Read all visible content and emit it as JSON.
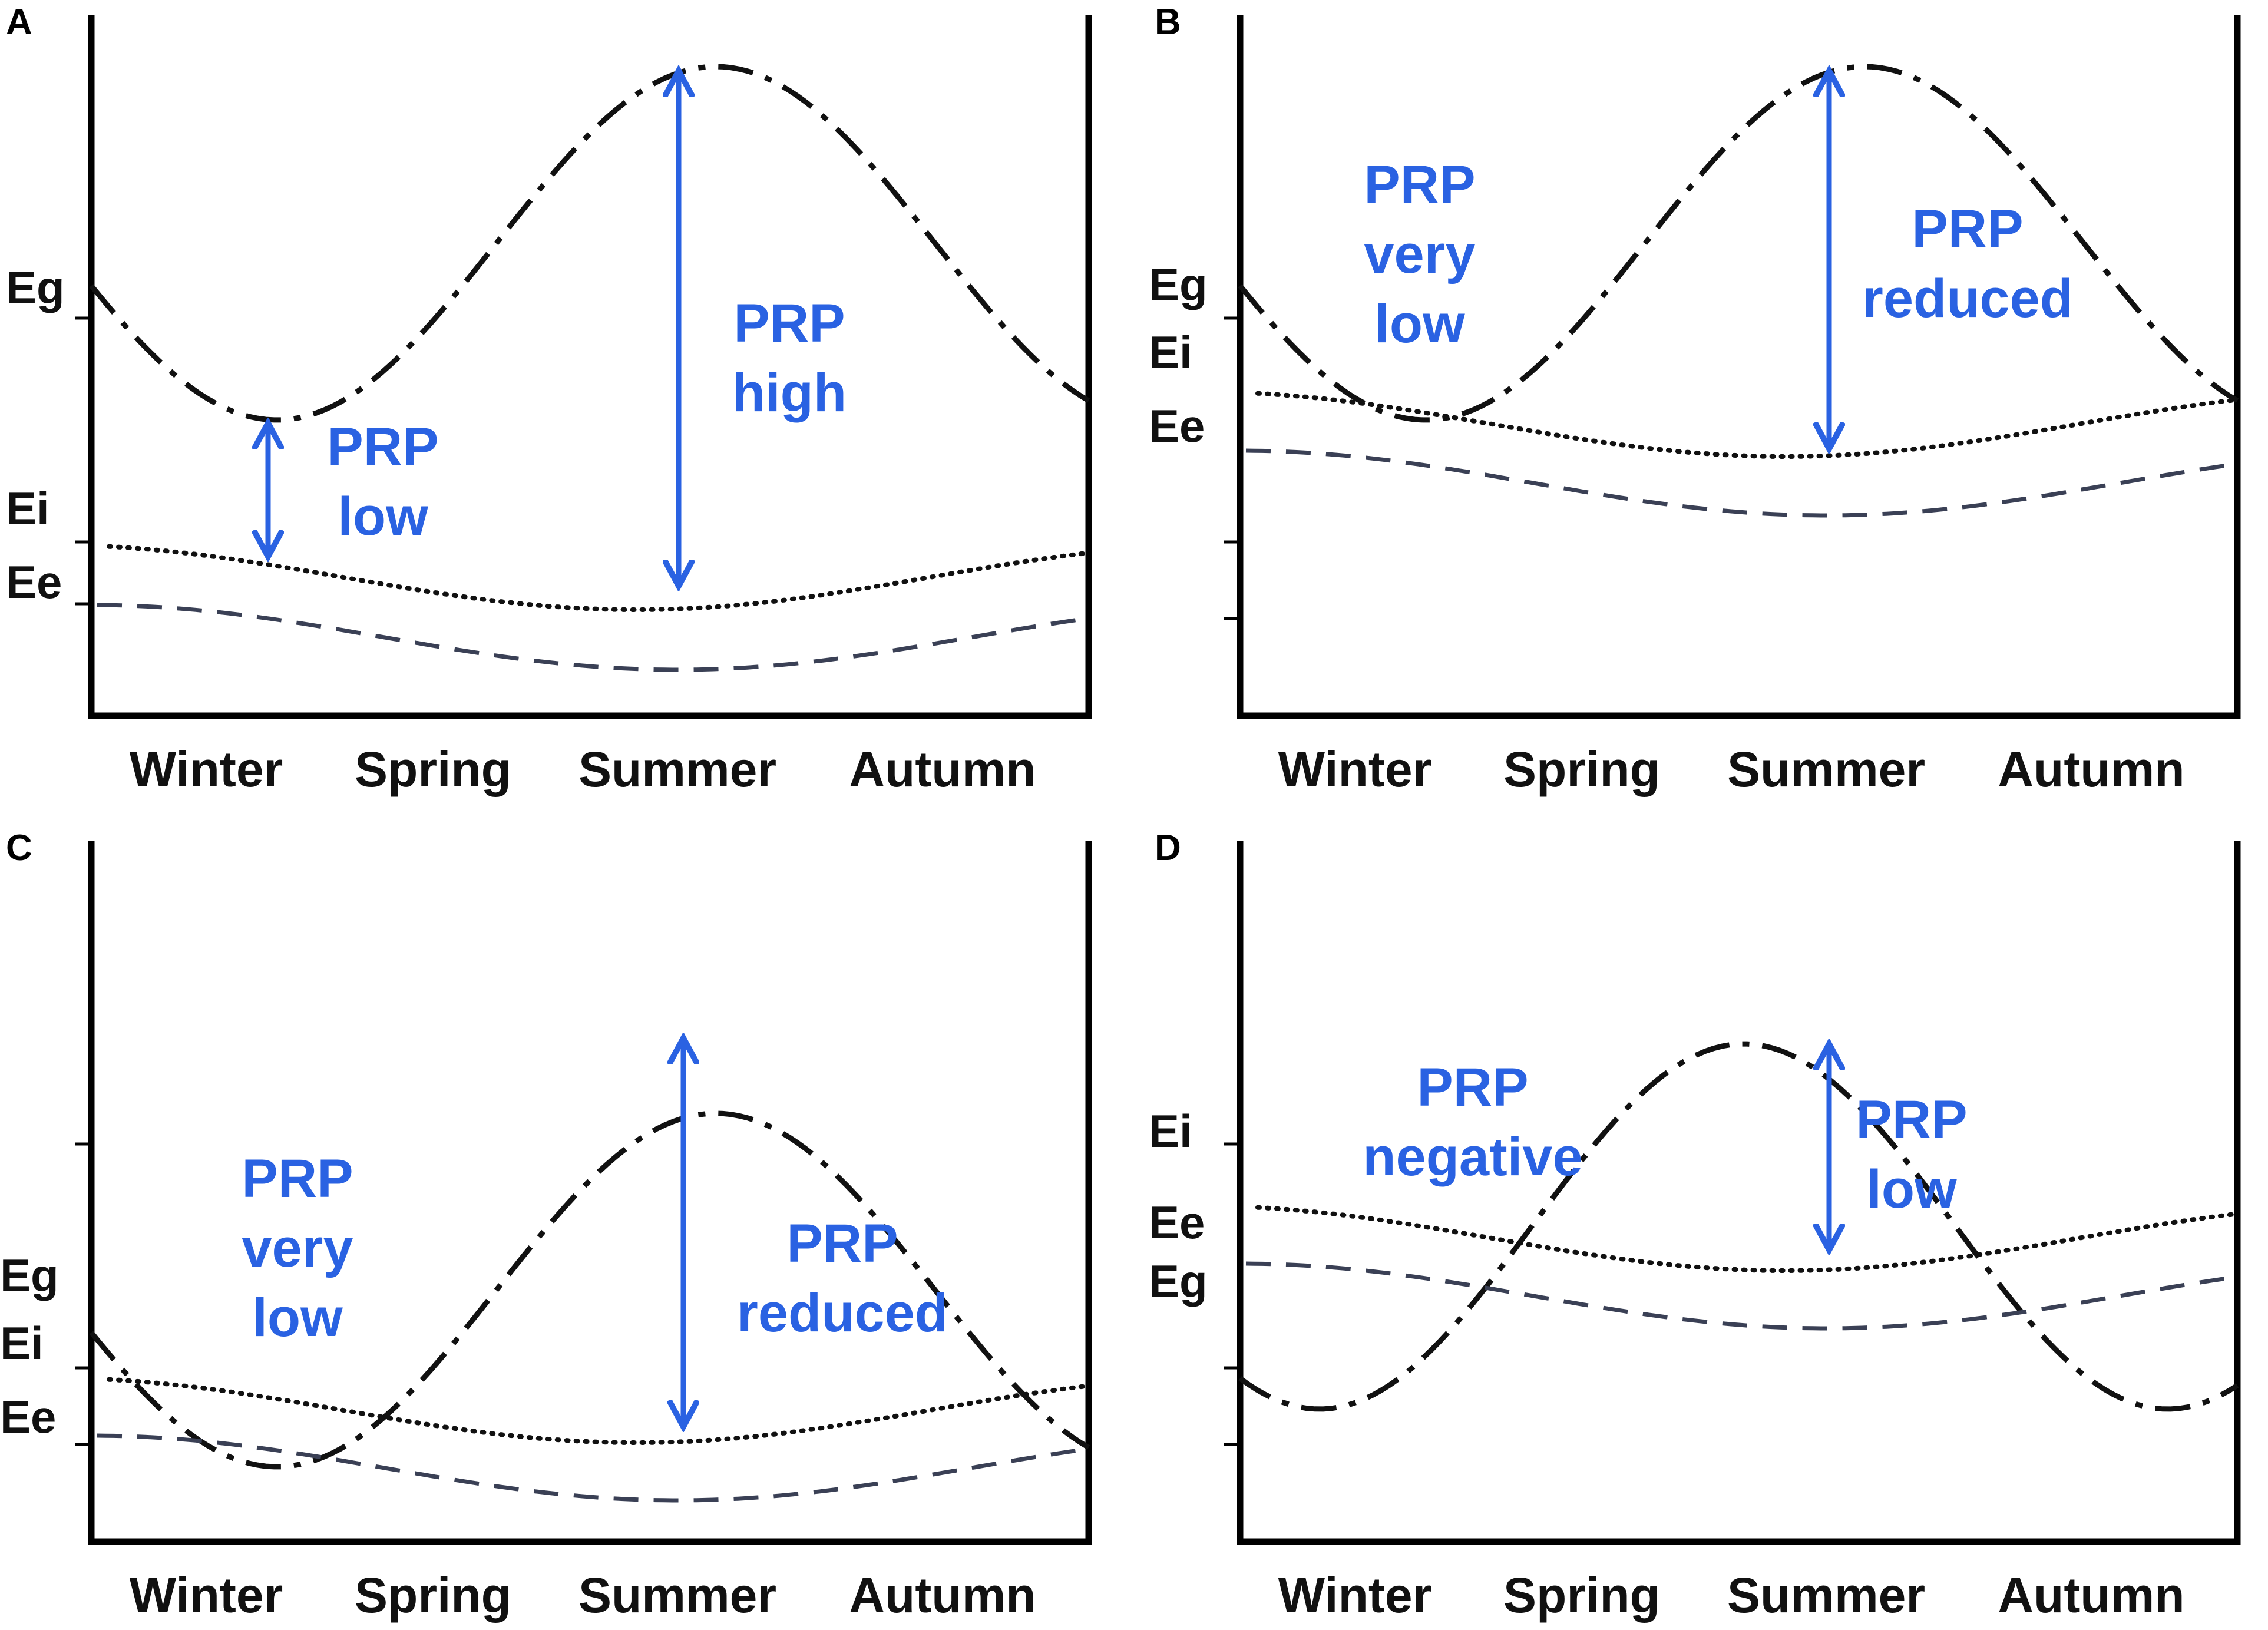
{
  "figure": {
    "colors": {
      "axis": "#000000",
      "eg_line": "#111111",
      "ei_line": "#111111",
      "ee_line": "#3a4055",
      "annotation": "#2a62e2"
    },
    "panels": [
      {
        "id": "A",
        "letter": "A",
        "seasons": [
          "Winter",
          "Spring",
          "Summer",
          "Autumn"
        ],
        "series_labels": [
          {
            "name": "Eg",
            "text": "Eg"
          },
          {
            "name": "Ei",
            "text": "Ei"
          },
          {
            "name": "Ee",
            "text": "Ee"
          }
        ],
        "annotations": [
          {
            "lines": [
              "PRP",
              "low"
            ]
          },
          {
            "lines": [
              "PRP",
              "high"
            ]
          }
        ]
      },
      {
        "id": "B",
        "letter": "B",
        "seasons": [
          "Winter",
          "Spring",
          "Summer",
          "Autumn"
        ],
        "series_labels": [
          {
            "name": "Eg",
            "text": "Eg"
          },
          {
            "name": "Ei",
            "text": "Ei"
          },
          {
            "name": "Ee",
            "text": "Ee"
          }
        ],
        "annotations": [
          {
            "lines": [
              "PRP",
              "very",
              "low"
            ]
          },
          {
            "lines": [
              "PRP",
              "reduced"
            ]
          }
        ]
      },
      {
        "id": "C",
        "letter": "C",
        "seasons": [
          "Winter",
          "Spring",
          "Summer",
          "Autumn"
        ],
        "series_labels": [
          {
            "name": "Eg",
            "text": "Eg"
          },
          {
            "name": "Ei",
            "text": "Ei"
          },
          {
            "name": "Ee",
            "text": "Ee"
          }
        ],
        "annotations": [
          {
            "lines": [
              "PRP",
              "very",
              "low"
            ]
          },
          {
            "lines": [
              "PRP",
              "reduced"
            ]
          }
        ]
      },
      {
        "id": "D",
        "letter": "D",
        "seasons": [
          "Winter",
          "Spring",
          "Summer",
          "Autumn"
        ],
        "series_labels": [
          {
            "name": "Ei",
            "text": "Ei"
          },
          {
            "name": "Ee",
            "text": "Ee"
          },
          {
            "name": "Eg",
            "text": "Eg"
          }
        ],
        "annotations": [
          {
            "lines": [
              "PRP",
              "negative"
            ]
          },
          {
            "lines": [
              "PRP",
              "low"
            ]
          }
        ]
      }
    ]
  }
}
